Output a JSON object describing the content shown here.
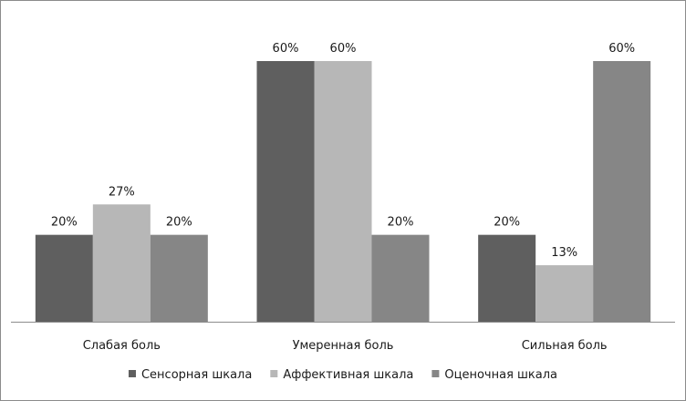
{
  "chart_data": {
    "type": "bar",
    "title": "",
    "xlabel": "",
    "ylabel": "",
    "categories": [
      "Слабая боль",
      "Умеренная боль",
      "Сильная боль"
    ],
    "series": [
      {
        "name": "Сенсорная шкала",
        "values": [
          20,
          60,
          20
        ],
        "labels": [
          "20%",
          "60%",
          "20%"
        ],
        "color": "#5f5f5f"
      },
      {
        "name": "Аффективная шкала",
        "values": [
          27,
          60,
          13
        ],
        "labels": [
          "27%",
          "60%",
          "13%"
        ],
        "color": "#b7b7b7"
      },
      {
        "name": "Оценочная шкала",
        "values": [
          20,
          20,
          60
        ],
        "labels": [
          "20%",
          "20%",
          "60%"
        ],
        "color": "#868686"
      }
    ],
    "ylim": [
      0,
      60
    ],
    "grid": false,
    "legend_position": "bottom"
  }
}
